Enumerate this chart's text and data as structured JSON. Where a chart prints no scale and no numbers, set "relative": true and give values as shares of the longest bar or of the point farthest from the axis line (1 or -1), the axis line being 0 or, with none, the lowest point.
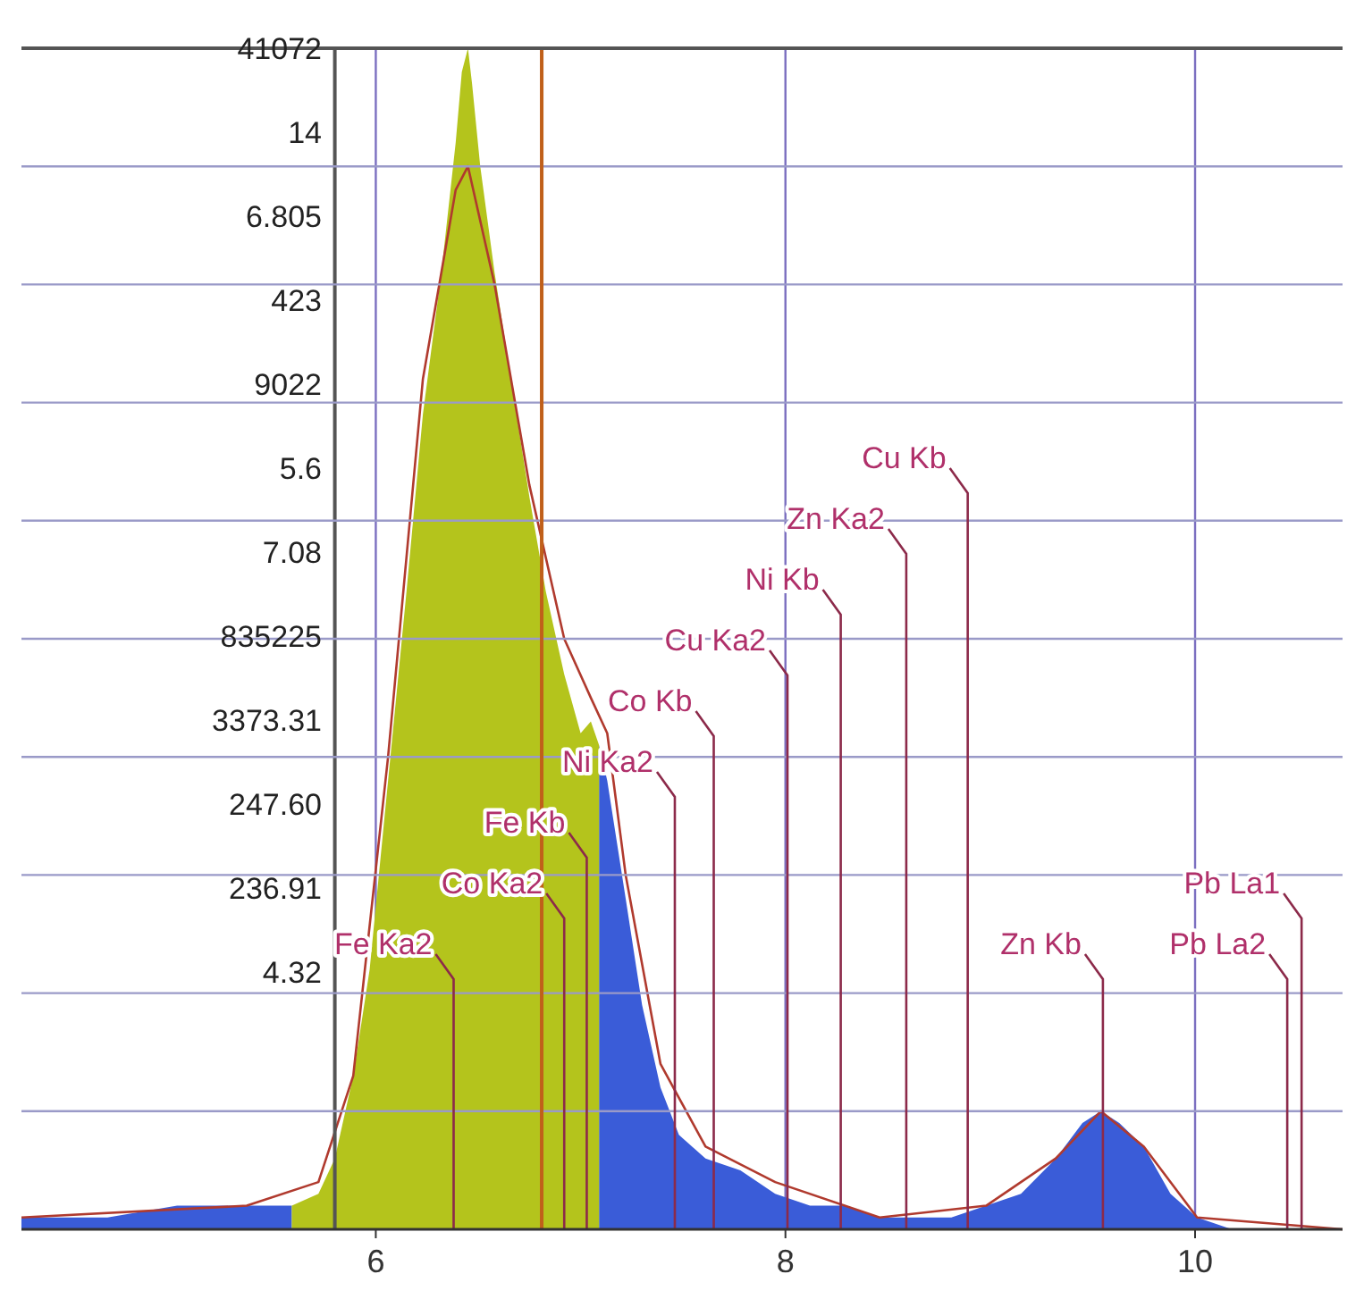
{
  "chart_data": {
    "type": "area",
    "relative": true,
    "x": [
      4.27,
      4.69,
      5.03,
      5.37,
      5.59,
      5.72,
      5.8,
      5.89,
      5.97,
      6.06,
      6.15,
      6.23,
      6.32,
      6.39,
      6.42,
      6.45,
      6.47,
      6.51,
      6.58,
      6.66,
      6.75,
      6.83,
      6.92,
      7.0,
      7.05,
      7.09,
      7.13,
      7.22,
      7.3,
      7.39,
      7.48,
      7.61,
      7.78,
      7.95,
      8.12,
      8.29,
      8.46,
      8.64,
      8.81,
      8.98,
      9.15,
      9.32,
      9.45,
      9.54,
      9.63,
      9.75,
      9.88,
      10.01,
      10.18,
      10.72
    ],
    "series": [
      {
        "color": "#3a5cd8",
        "values": [
          0.01,
          0.01,
          0.02,
          0.02,
          0.02,
          null,
          null,
          null,
          null,
          null,
          null,
          null,
          null,
          null,
          null,
          null,
          null,
          null,
          null,
          null,
          null,
          null,
          null,
          null,
          null,
          0.41,
          0.38,
          0.28,
          0.19,
          0.12,
          0.08,
          0.06,
          0.05,
          0.03,
          0.02,
          0.02,
          0.01,
          0.01,
          0.01,
          0.02,
          0.03,
          0.06,
          0.09,
          0.1,
          0.09,
          0.07,
          0.03,
          0.01,
          0,
          0
        ]
      },
      {
        "color": "#b4c41c",
        "values": [
          null,
          null,
          null,
          null,
          0.02,
          0.03,
          0.06,
          0.13,
          0.22,
          0.38,
          0.54,
          0.69,
          0.81,
          0.92,
          0.98,
          1,
          0.97,
          0.9,
          0.81,
          0.72,
          0.62,
          0.54,
          0.47,
          0.42,
          0.43,
          0.41,
          null,
          null,
          null,
          null,
          null,
          null,
          null,
          null,
          null,
          null,
          null,
          null,
          null,
          null,
          null,
          null,
          null,
          null,
          null,
          null,
          null,
          null,
          null,
          null
        ]
      },
      {
        "type": "line",
        "color": "#b03a2e",
        "x": [
          4.27,
          5.37,
          5.72,
          5.89,
          6.06,
          6.23,
          6.39,
          6.45,
          6.58,
          6.75,
          6.92,
          7.05,
          7.13,
          7.22,
          7.39,
          7.61,
          7.95,
          8.46,
          8.98,
          9.32,
          9.54,
          9.75,
          10.01,
          10.72
        ],
        "values": [
          0.01,
          0.02,
          0.04,
          0.13,
          0.4,
          0.72,
          0.88,
          0.9,
          0.8,
          0.63,
          0.5,
          0.45,
          0.42,
          0.3,
          0.14,
          0.07,
          0.04,
          0.01,
          0.02,
          0.06,
          0.1,
          0.07,
          0.01,
          0
        ]
      }
    ],
    "xlim": [
      4.27,
      10.72
    ],
    "xticks": [
      6,
      8,
      10
    ],
    "grid": "x",
    "tick_labels": "x",
    "ref_lines": [
      {
        "axis": "x",
        "value": 5.8,
        "label": null,
        "color": "#555555"
      },
      {
        "axis": "y",
        "value": 0.1,
        "label": null,
        "color": "#9a9ac8"
      },
      {
        "axis": "y",
        "value": 0.2,
        "label": null,
        "color": "#9a9ac8"
      },
      {
        "axis": "y",
        "value": 0.3,
        "label": null,
        "color": "#9a9ac8"
      },
      {
        "axis": "y",
        "value": 0.4,
        "label": null,
        "color": "#9a9ac8"
      },
      {
        "axis": "y",
        "value": 0.5,
        "label": null,
        "color": "#9a9ac8"
      },
      {
        "axis": "y",
        "value": 0.6,
        "label": null,
        "color": "#9a9ac8"
      },
      {
        "axis": "y",
        "value": 0.7,
        "label": null,
        "color": "#9a9ac8"
      },
      {
        "axis": "y",
        "value": 0.8,
        "label": null,
        "color": "#9a9ac8"
      },
      {
        "axis": "y",
        "value": 0.9,
        "label": null,
        "color": "#9a9ac8"
      },
      {
        "axis": "x",
        "value": 6.38,
        "label": "Fe Ka2",
        "color": "#8c2a4a"
      },
      {
        "axis": "x",
        "value": 6.81,
        "label": null,
        "color": "#c0601a"
      },
      {
        "axis": "x",
        "value": 6.92,
        "label": "Co Ka2",
        "color": "#8c2a4a"
      },
      {
        "axis": "x",
        "value": 7.03,
        "label": "Fe Kb",
        "color": "#8c2a4a"
      },
      {
        "axis": "x",
        "value": 7.46,
        "label": "Ni Ka2",
        "color": "#8c2a4a"
      },
      {
        "axis": "x",
        "value": 7.65,
        "label": "Co Kb",
        "color": "#8c2a4a"
      },
      {
        "axis": "x",
        "value": 8.01,
        "label": "Cu Ka2",
        "color": "#8c2a4a"
      },
      {
        "axis": "x",
        "value": 8.27,
        "label": "Ni Kb",
        "color": "#8c2a4a"
      },
      {
        "axis": "x",
        "value": 8.59,
        "label": "Zn Ka2",
        "color": "#8c2a4a"
      },
      {
        "axis": "x",
        "value": 8.89,
        "label": "Cu Kb",
        "color": "#8c2a4a"
      },
      {
        "axis": "x",
        "value": 9.55,
        "label": "Zn Kb",
        "color": "#8c2a4a"
      },
      {
        "axis": "x",
        "value": 10.45,
        "label": "Pb La2",
        "color": "#8c2a4a"
      },
      {
        "axis": "x",
        "value": 10.52,
        "label": "Pb La1",
        "color": "#8c2a4a"
      }
    ],
    "annotations": [
      "41072",
      "14",
      "6.805",
      "423",
      "9022",
      "5.6",
      "7.08",
      "835225",
      "3373.31",
      "247.60",
      "236.91",
      "4.32"
    ]
  }
}
